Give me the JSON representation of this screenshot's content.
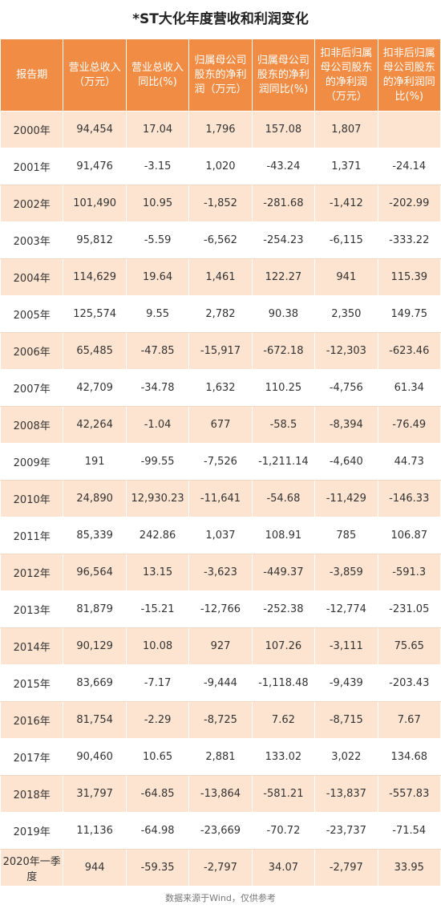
{
  "title": "*ST大化年度营收和利润变化",
  "table": {
    "header": [
      "报告期",
      "营业总收入（万元）",
      "营业总收入同比(%)",
      "归属母公司股东的净利润（万元）",
      "归属母公司股东的净利润同比(%)",
      "扣非后归属母公司股东的净利润（万元）",
      "扣非后归属母公司股东的净利润同比(%)"
    ],
    "rows": [
      [
        "2000年",
        "94,454",
        "17.04",
        "1,796",
        "157.08",
        "1,807",
        null
      ],
      [
        "2001年",
        "91,476",
        "-3.15",
        "1,020",
        "-43.24",
        "1,371",
        "-24.14"
      ],
      [
        "2002年",
        "101,490",
        "10.95",
        "-1,852",
        "-281.68",
        "-1,412",
        "-202.99"
      ],
      [
        "2003年",
        "95,812",
        "-5.59",
        "-6,562",
        "-254.23",
        "-6,115",
        "-333.22"
      ],
      [
        "2004年",
        "114,629",
        "19.64",
        "1,461",
        "122.27",
        "941",
        "115.39"
      ],
      [
        "2005年",
        "125,574",
        "9.55",
        "2,782",
        "90.38",
        "2,350",
        "149.75"
      ],
      [
        "2006年",
        "65,485",
        "-47.85",
        "-15,917",
        "-672.18",
        "-12,303",
        "-623.46"
      ],
      [
        "2007年",
        "42,709",
        "-34.78",
        "1,632",
        "110.25",
        "-4,756",
        "61.34"
      ],
      [
        "2008年",
        "42,264",
        "-1.04",
        "677",
        "-58.5",
        "-8,394",
        "-76.49"
      ],
      [
        "2009年",
        "191",
        "-99.55",
        "-7,526",
        "-1,211.14",
        "-4,640",
        "44.73"
      ],
      [
        "2010年",
        "24,890",
        "12,930.23",
        "-11,641",
        "-54.68",
        "-11,429",
        "-146.33"
      ],
      [
        "2011年",
        "85,339",
        "242.86",
        "1,037",
        "108.91",
        "785",
        "106.87"
      ],
      [
        "2012年",
        "96,564",
        "13.15",
        "-3,623",
        "-449.37",
        "-3,859",
        "-591.3"
      ],
      [
        "2013年",
        "81,879",
        "-15.21",
        "-12,766",
        "-252.38",
        "-12,774",
        "-231.05"
      ],
      [
        "2014年",
        "90,129",
        "10.08",
        "927",
        "107.26",
        "-3,111",
        "75.65"
      ],
      [
        "2015年",
        "83,669",
        "-7.17",
        "-9,444",
        "-1,118.48",
        "-9,439",
        "-203.43"
      ],
      [
        "2016年",
        "81,754",
        "-2.29",
        "-8,725",
        "7.62",
        "-8,715",
        "7.67"
      ],
      [
        "2017年",
        "90,460",
        "10.65",
        "2,881",
        "133.02",
        "3,022",
        "134.68"
      ],
      [
        "2018年",
        "31,797",
        "-64.85",
        "-13,864",
        "-581.21",
        "-13,837",
        "-557.83"
      ],
      [
        "2019年",
        "11,136",
        "-64.98",
        "-23,669",
        "-70.72",
        "-23,737",
        "-71.54"
      ],
      [
        "2020年一季度",
        "944",
        "-59.35",
        "-2,797",
        "34.07",
        "-2,797",
        "33.95"
      ]
    ]
  },
  "footer": "数据来源于Wind，仅供参考"
}
